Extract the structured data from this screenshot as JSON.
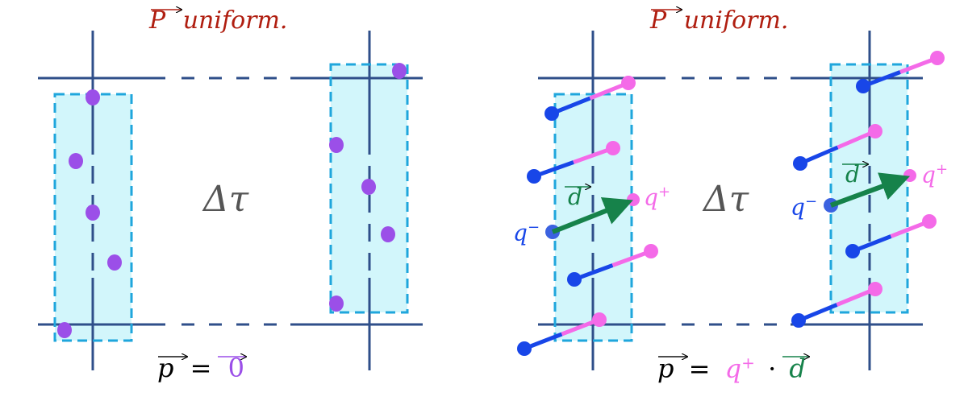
{
  "colors": {
    "grid": "#2f4f8a",
    "box_fill": "#d2f6fb",
    "box_stroke": "#1fa6dc",
    "charge": "#9b4fe8",
    "title": "#b01e10",
    "neg": "#1846e8",
    "pos": "#f46ae8",
    "dipole": "#16824a",
    "delta": "#555555"
  },
  "left_panel": {
    "title_symbol": "P",
    "title_text": "uniform.",
    "delta_label": "Δτ",
    "formula": {
      "lhs": "p",
      "eq": "=",
      "rhs": "0"
    }
  },
  "right_panel": {
    "title_symbol": "P",
    "title_text": "uniform.",
    "delta_label": "Δτ",
    "neg_label": "q",
    "neg_sup": "−",
    "pos_label": "q",
    "pos_sup": "+",
    "dipole_label": "d",
    "formula": {
      "lhs": "p",
      "eq": "=",
      "q": "q",
      "q_sup": "+",
      "dot": "·",
      "d": "d"
    }
  }
}
